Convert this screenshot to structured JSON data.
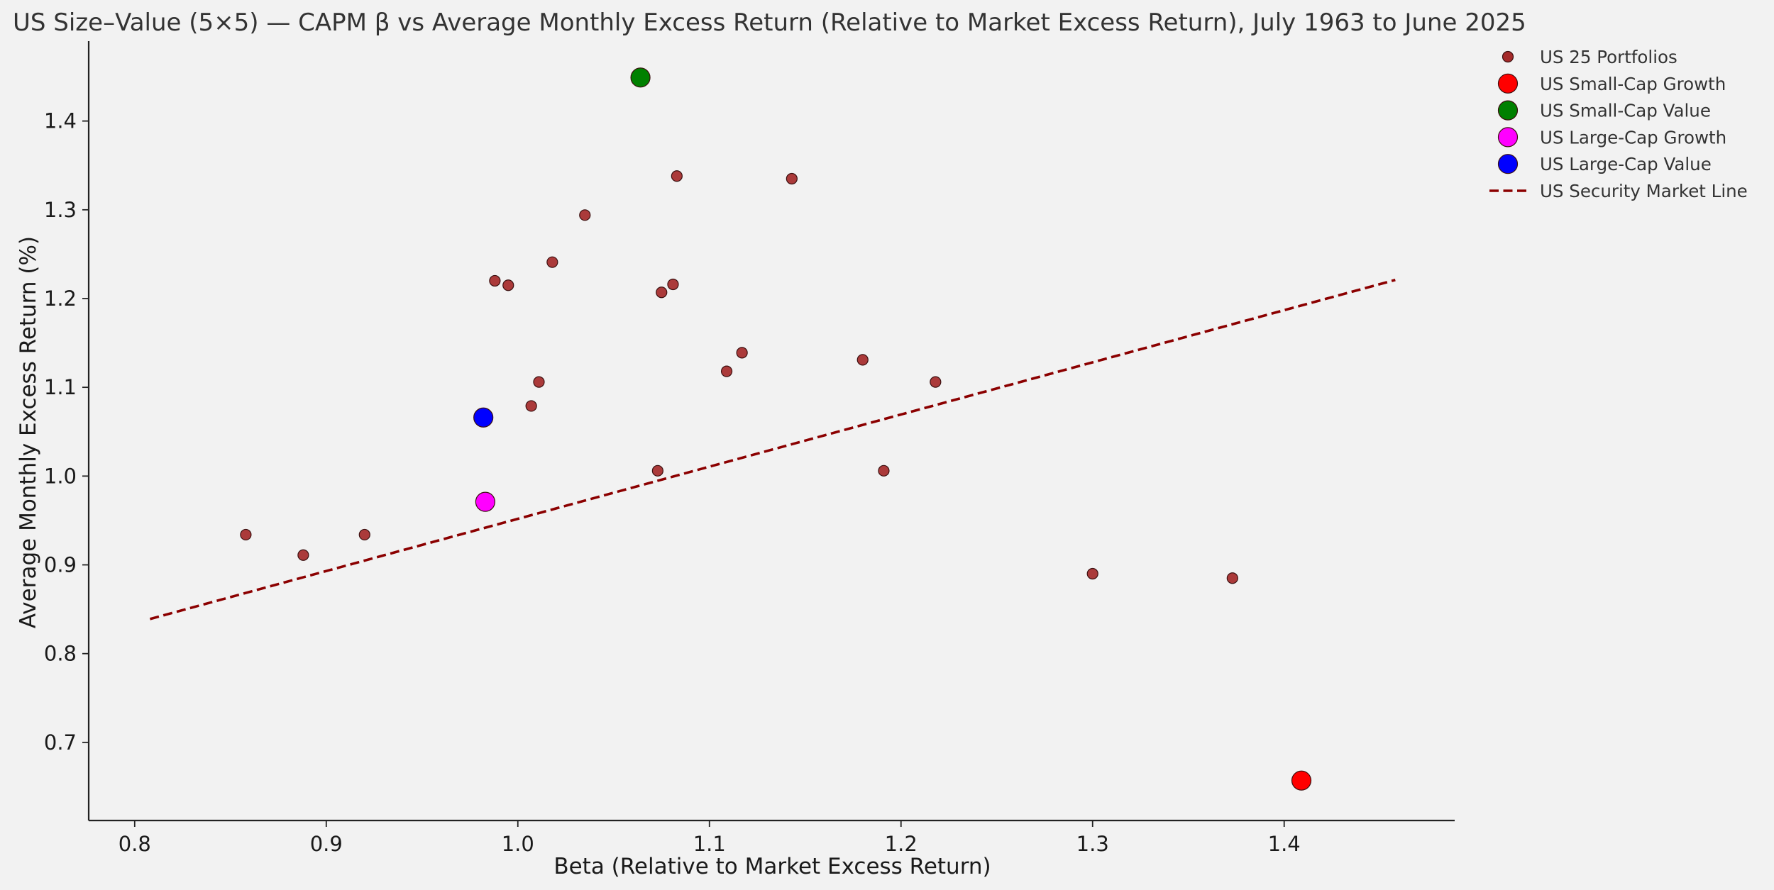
{
  "chart_data": {
    "type": "scatter",
    "title": "US Size–Value (5×5) — CAPM β vs Average Monthly Excess Return (Relative to Market Excess Return), July 1963 to June 2025",
    "xlabel": "Beta (Relative to Market Excess Return)",
    "ylabel": "Average Monthly Excess Return (%)",
    "xlim": [
      0.776,
      1.489
    ],
    "ylim": [
      0.612,
      1.49
    ],
    "xticks": [
      "0.8",
      "0.9",
      "1.0",
      "1.1",
      "1.2",
      "1.3",
      "1.4"
    ],
    "yticks": [
      "0.7",
      "0.8",
      "0.9",
      "1.0",
      "1.1",
      "1.2",
      "1.3",
      "1.4"
    ],
    "grid": false,
    "legend_position": "outside-top-right",
    "series": [
      {
        "name": "US 25 Portfolios",
        "kind": "scatter",
        "color": "#a52a2a",
        "marker_size": "small",
        "points": [
          {
            "x": 0.858,
            "y": 0.934
          },
          {
            "x": 0.888,
            "y": 0.911
          },
          {
            "x": 0.92,
            "y": 0.934
          },
          {
            "x": 0.988,
            "y": 1.22
          },
          {
            "x": 0.995,
            "y": 1.215
          },
          {
            "x": 1.007,
            "y": 1.079
          },
          {
            "x": 1.011,
            "y": 1.106
          },
          {
            "x": 1.018,
            "y": 1.241
          },
          {
            "x": 1.035,
            "y": 1.294
          },
          {
            "x": 1.073,
            "y": 1.006
          },
          {
            "x": 1.075,
            "y": 1.207
          },
          {
            "x": 1.081,
            "y": 1.216
          },
          {
            "x": 1.083,
            "y": 1.338
          },
          {
            "x": 1.109,
            "y": 1.118
          },
          {
            "x": 1.117,
            "y": 1.139
          },
          {
            "x": 1.143,
            "y": 1.335
          },
          {
            "x": 1.18,
            "y": 1.131
          },
          {
            "x": 1.191,
            "y": 1.006
          },
          {
            "x": 1.218,
            "y": 1.106
          },
          {
            "x": 1.3,
            "y": 0.89
          },
          {
            "x": 1.373,
            "y": 0.885
          }
        ]
      },
      {
        "name": "US Small-Cap Growth",
        "kind": "scatter",
        "color": "#ff0000",
        "marker_size": "large",
        "points": [
          {
            "x": 1.409,
            "y": 0.657
          }
        ]
      },
      {
        "name": "US Small-Cap Value",
        "kind": "scatter",
        "color": "#008000",
        "marker_size": "large",
        "points": [
          {
            "x": 1.064,
            "y": 1.449
          }
        ]
      },
      {
        "name": "US Large-Cap Growth",
        "kind": "scatter",
        "color": "#ff00ff",
        "marker_size": "large",
        "points": [
          {
            "x": 0.983,
            "y": 0.971
          }
        ]
      },
      {
        "name": "US Large-Cap Value",
        "kind": "scatter",
        "color": "#0000ff",
        "marker_size": "large",
        "points": [
          {
            "x": 0.982,
            "y": 1.066
          }
        ]
      },
      {
        "name": "US Security Market Line",
        "kind": "line",
        "style": "dashed",
        "color": "#8b0000",
        "points": [
          {
            "x": 0.808,
            "y": 0.839
          },
          {
            "x": 1.458,
            "y": 1.221
          }
        ]
      }
    ]
  }
}
